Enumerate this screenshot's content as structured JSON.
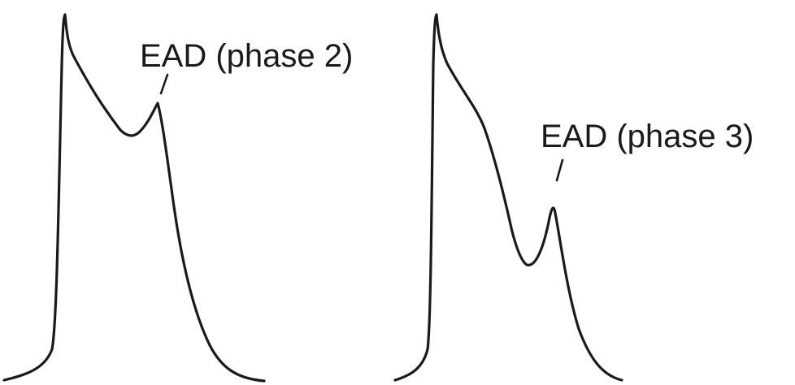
{
  "colors": {
    "stroke": "#1a1a1a",
    "text": "#1a1a1a",
    "background": "#ffffff"
  },
  "panels": [
    {
      "label": "EAD (phase 2)"
    },
    {
      "label": "EAD (phase 3)"
    }
  ]
}
